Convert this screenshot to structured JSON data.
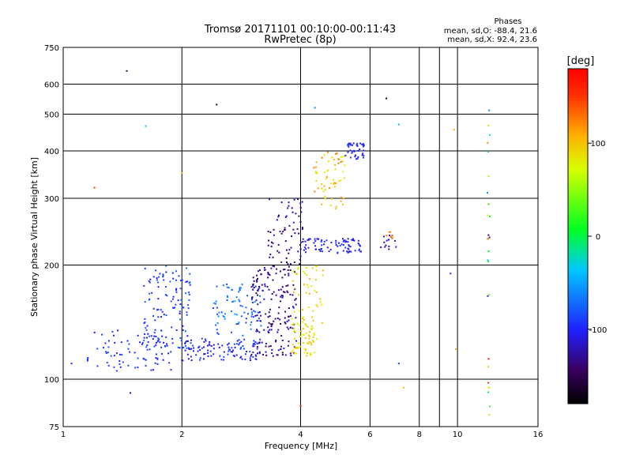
{
  "chart_data": {
    "type": "scatter",
    "title": "Tromsø 20171101 00:10:00-00:11:43",
    "subtitle": "RwPretec (8p)",
    "xlabel": "Frequency [MHz]",
    "ylabel": "Stationary phase Virtual Height [km]",
    "x_scale": "log",
    "y_scale": "log",
    "xlim": [
      1,
      16
    ],
    "ylim": [
      75,
      750
    ],
    "x_ticks": [
      1,
      2,
      4,
      6,
      8,
      10,
      16
    ],
    "x_tick_labels": [
      "1",
      "2",
      "4",
      "6",
      "8",
      "10",
      "16"
    ],
    "x_grid": [
      2,
      4,
      6,
      8,
      10
    ],
    "x_minor_grid": [
      9
    ],
    "y_ticks": [
      75,
      100,
      200,
      300,
      400,
      500,
      600,
      750
    ],
    "y_tick_labels": [
      "75",
      "100",
      "200",
      "300",
      "400",
      "500",
      "600",
      "750"
    ],
    "y_grid": [
      100,
      200,
      300,
      400,
      500,
      600
    ],
    "grid": true,
    "stats": {
      "heading": "Phases",
      "line_o": "mean, sd,O: -88.4, 21.6",
      "line_x": "mean, sd,X:  92.4, 23.6"
    },
    "colorbar": {
      "label": "[deg]",
      "range": [
        -180,
        180
      ],
      "ticks": [
        100,
        0,
        -100
      ],
      "tick_labels": [
        "100",
        "0",
        "-100"
      ]
    },
    "clusters": [
      {
        "x": [
          1.15,
          1.9
        ],
        "y": [
          105,
          135
        ],
        "phase": [
          -110,
          -80
        ],
        "n": 80
      },
      {
        "x": [
          1.6,
          2.1
        ],
        "y": [
          120,
          200
        ],
        "phase": [
          -110,
          -70
        ],
        "n": 120
      },
      {
        "x": [
          2.0,
          3.2
        ],
        "y": [
          112,
          128
        ],
        "phase": [
          -120,
          -80
        ],
        "n": 110
      },
      {
        "x": [
          2.4,
          3.2
        ],
        "y": [
          130,
          180
        ],
        "phase": [
          -90,
          -50
        ],
        "n": 80
      },
      {
        "x": [
          3.0,
          3.9
        ],
        "y": [
          115,
          200
        ],
        "phase": [
          -150,
          -110
        ],
        "n": 180
      },
      {
        "x": [
          3.3,
          4.1
        ],
        "y": [
          200,
          300
        ],
        "phase": [
          -150,
          -110
        ],
        "n": 70
      },
      {
        "x": [
          3.8,
          4.4
        ],
        "y": [
          115,
          140
        ],
        "phase": [
          70,
          110
        ],
        "n": 60
      },
      {
        "x": [
          3.8,
          4.6
        ],
        "y": [
          140,
          200
        ],
        "phase": [
          60,
          110
        ],
        "n": 50
      },
      {
        "x": [
          4.0,
          5.7
        ],
        "y": [
          215,
          235
        ],
        "phase": [
          -120,
          -90
        ],
        "n": 80
      },
      {
        "x": [
          4.3,
          5.2
        ],
        "y": [
          280,
          400
        ],
        "phase": [
          70,
          130
        ],
        "n": 60
      },
      {
        "x": [
          5.2,
          5.8
        ],
        "y": [
          380,
          420
        ],
        "phase": [
          -110,
          -90
        ],
        "n": 40
      },
      {
        "x": [
          6.2,
          7.0
        ],
        "y": [
          220,
          240
        ],
        "phase": [
          -130,
          -100
        ],
        "n": 14
      },
      {
        "x": [
          6.6,
          7.0
        ],
        "y": [
          235,
          245
        ],
        "phase": [
          120,
          150
        ],
        "n": 6
      },
      {
        "x": [
          11.9,
          12.1
        ],
        "y": [
          80,
          520
        ],
        "phase": [
          -140,
          170
        ],
        "n": 28
      }
    ],
    "outliers": [
      {
        "x": 1.05,
        "y": 110,
        "phase": -100
      },
      {
        "x": 1.2,
        "y": 320,
        "phase": 150
      },
      {
        "x": 1.45,
        "y": 650,
        "phase": -150
      },
      {
        "x": 1.48,
        "y": 92,
        "phase": -130
      },
      {
        "x": 1.62,
        "y": 465,
        "phase": -40
      },
      {
        "x": 2.45,
        "y": 530,
        "phase": -160
      },
      {
        "x": 2.0,
        "y": 350,
        "phase": 110
      },
      {
        "x": 4.35,
        "y": 520,
        "phase": -60
      },
      {
        "x": 4.0,
        "y": 85,
        "phase": 160
      },
      {
        "x": 6.6,
        "y": 550,
        "phase": -160
      },
      {
        "x": 7.1,
        "y": 470,
        "phase": -40
      },
      {
        "x": 7.3,
        "y": 95,
        "phase": 100
      },
      {
        "x": 9.6,
        "y": 190,
        "phase": -100
      },
      {
        "x": 9.8,
        "y": 455,
        "phase": 110
      },
      {
        "x": 9.9,
        "y": 120,
        "phase": 110
      },
      {
        "x": 7.1,
        "y": 110,
        "phase": -90
      }
    ]
  }
}
